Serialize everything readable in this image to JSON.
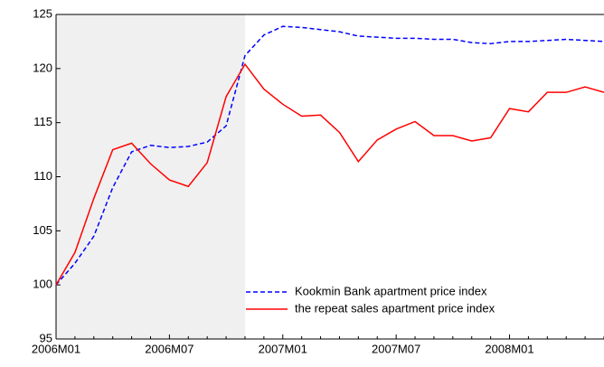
{
  "chart_data": {
    "type": "line",
    "categories": [
      "2006M01",
      null,
      null,
      null,
      null,
      null,
      "2006M07",
      null,
      null,
      null,
      null,
      null,
      "2007M01",
      null,
      null,
      null,
      null,
      null,
      "2007M07",
      null,
      null,
      null,
      null,
      null,
      "2008M01",
      null,
      null,
      null,
      null,
      null
    ],
    "series": [
      {
        "name": "Kookmin Bank apartment price index",
        "color": "#0000ff",
        "dash": true,
        "values": [
          100,
          102,
          104.5,
          109,
          112.3,
          112.9,
          112.7,
          112.8,
          113.2,
          114.7,
          121.2,
          123.1,
          123.9,
          123.8,
          123.6,
          123.4,
          123.0,
          122.9,
          122.8,
          122.8,
          122.7,
          122.7,
          122.4,
          122.3,
          122.5,
          122.5,
          122.6,
          122.7,
          122.6,
          122.5
        ]
      },
      {
        "name": "the repeat sales apartment price index",
        "color": "#ff0000",
        "dash": false,
        "values": [
          100,
          103,
          108,
          112.5,
          113.1,
          111.2,
          109.7,
          109.1,
          111.3,
          117.4,
          120.4,
          118.1,
          116.7,
          115.6,
          115.7,
          114.1,
          111.4,
          113.4,
          114.4,
          115.1,
          113.8,
          113.8,
          113.3,
          113.6,
          116.3,
          116.0,
          117.8,
          117.8,
          118.3,
          117.8
        ]
      }
    ],
    "ylim": [
      95,
      125
    ],
    "yticks": [
      95,
      100,
      105,
      110,
      115,
      120,
      125
    ],
    "shade": [
      0,
      10
    ],
    "shade_color": "#f0f0f0",
    "legend": "lower right"
  }
}
